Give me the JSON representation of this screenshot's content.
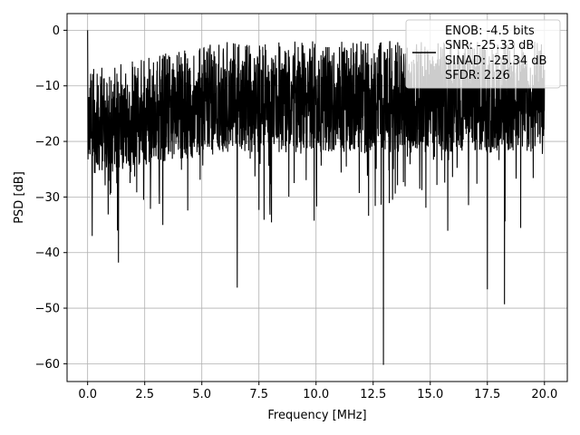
{
  "chart_data": {
    "type": "line",
    "xlabel": "Frequency [MHz]",
    "ylabel": "PSD [dB]",
    "xlim": [
      -0.9,
      21.0
    ],
    "ylim": [
      -63.2,
      3.0
    ],
    "x_ticks": [
      0.0,
      2.5,
      5.0,
      7.5,
      10.0,
      12.5,
      15.0,
      17.5,
      20.0
    ],
    "x_tick_labels": [
      "0.0",
      "2.5",
      "5.0",
      "7.5",
      "10.0",
      "12.5",
      "15.0",
      "17.5",
      "20.0"
    ],
    "y_ticks": [
      0,
      -10,
      -20,
      -30,
      -40,
      -50,
      -60
    ],
    "y_tick_labels": [
      "0",
      "−10",
      "−20",
      "−30",
      "−40",
      "−50",
      "−60"
    ],
    "grid": true,
    "legend_position": "top-right",
    "legend": [
      "ENOB: -4.5 bits",
      "SNR: -25.33 dB",
      "SINAD: -25.34 dB",
      "SFDR: 2.26"
    ],
    "series_color": "#000000",
    "x_range": [
      0.0,
      20.0
    ],
    "y_range": [
      -60.2,
      0.0
    ],
    "features": [
      {
        "x": 0.0,
        "y": 0.0
      },
      {
        "x": 0.2,
        "y": -37.0
      },
      {
        "x": 1.35,
        "y": -41.8
      },
      {
        "x": 6.55,
        "y": -46.3
      },
      {
        "x": 12.95,
        "y": -60.2
      },
      {
        "x": 17.5,
        "y": -46.6
      },
      {
        "x": 18.25,
        "y": -49.3
      },
      {
        "x": 9.85,
        "y": -2.0
      }
    ]
  }
}
